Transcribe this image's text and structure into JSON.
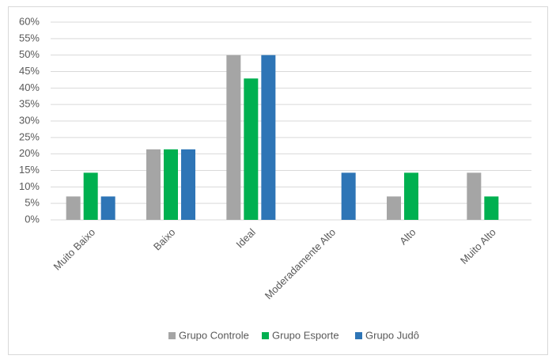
{
  "chart_data": {
    "type": "bar",
    "categories": [
      "Muito Baixo",
      "Baixo",
      "Ideal",
      "Moderadamente Alto",
      "Alto",
      "Muito Alto"
    ],
    "series": [
      {
        "name": "Grupo Controle",
        "color": "#a5a5a5",
        "values": [
          7.1,
          21.4,
          50,
          0,
          7.1,
          14.3
        ]
      },
      {
        "name": "Grupo Esporte",
        "color": "#00b050",
        "values": [
          14.3,
          21.4,
          42.9,
          0,
          14.3,
          7.1
        ]
      },
      {
        "name": "Grupo Judô",
        "color": "#2e75b6",
        "values": [
          7.1,
          21.4,
          50,
          14.3,
          0,
          0
        ]
      }
    ],
    "ylim": [
      0,
      60
    ],
    "yticks": [
      {
        "value": 0,
        "label": "0%"
      },
      {
        "value": 5,
        "label": "5%"
      },
      {
        "value": 10,
        "label": "10%"
      },
      {
        "value": 15,
        "label": "15%"
      },
      {
        "value": 20,
        "label": "20%"
      },
      {
        "value": 25,
        "label": "25%"
      },
      {
        "value": 30,
        "label": "30%"
      },
      {
        "value": 35,
        "label": "35%"
      },
      {
        "value": 40,
        "label": "40%"
      },
      {
        "value": 45,
        "label": "45%"
      },
      {
        "value": 50,
        "label": "50%"
      },
      {
        "value": 55,
        "label": "55%"
      },
      {
        "value": 60,
        "label": "60%"
      }
    ],
    "grid": true,
    "legend": "bottom"
  }
}
